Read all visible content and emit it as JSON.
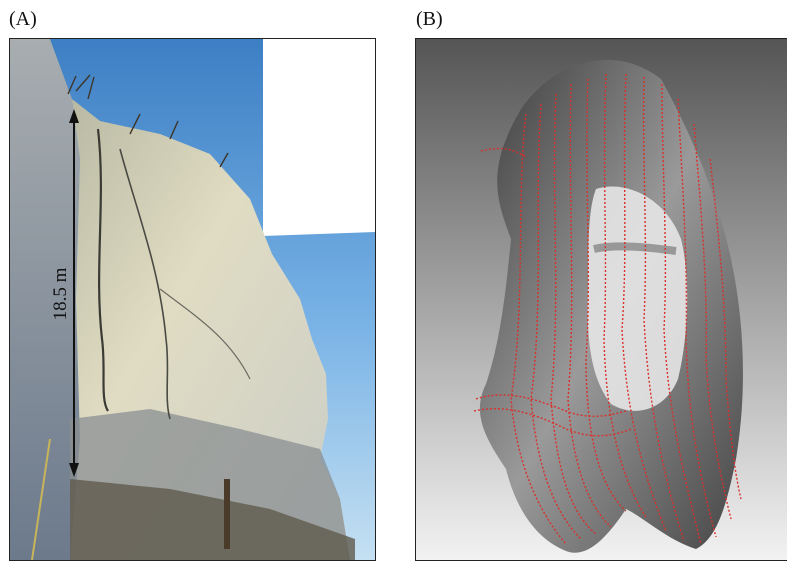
{
  "panel_a": {
    "label": "(A)",
    "measurement": "18.5 m"
  },
  "panel_b": {
    "label": "(B)"
  },
  "colors": {
    "sky": "#6fa8dc",
    "cliff_light": "#d8d6c2",
    "cliff_shadow": "#4f5f74",
    "contour_red": "#d9302a",
    "background_gray_top": "#555555",
    "background_gray_bottom": "#f0f0f0"
  }
}
